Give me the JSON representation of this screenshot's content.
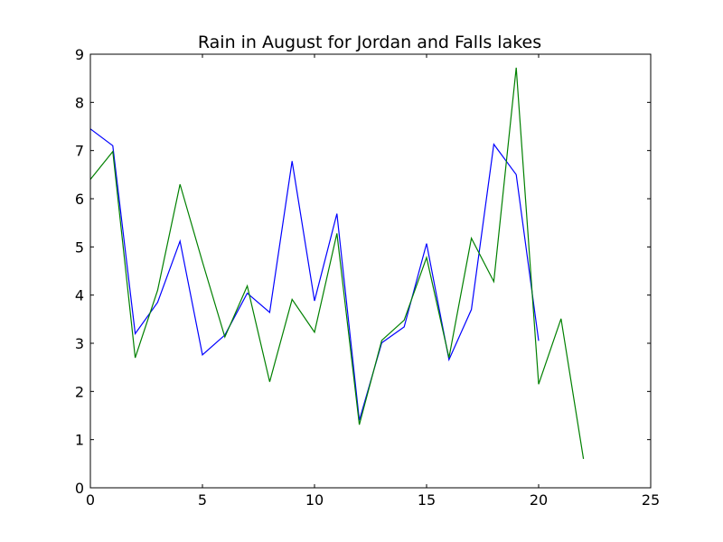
{
  "chart_data": {
    "type": "line",
    "title": "Rain in August for Jordan and Falls lakes",
    "xlabel": "",
    "ylabel": "",
    "xlim": [
      0,
      25
    ],
    "ylim": [
      0,
      9
    ],
    "x_ticks": [
      0,
      5,
      10,
      15,
      20,
      25
    ],
    "y_ticks": [
      0,
      1,
      2,
      3,
      4,
      5,
      6,
      7,
      8,
      9
    ],
    "grid": false,
    "series": [
      {
        "color": "#0000ff",
        "x": [
          0,
          1,
          2,
          3,
          4,
          5,
          6,
          7,
          8,
          9,
          10,
          11,
          12,
          13,
          14,
          15,
          16,
          17,
          18,
          19,
          20
        ],
        "values": [
          7.45,
          7.1,
          3.2,
          3.85,
          5.12,
          2.76,
          3.17,
          4.04,
          3.64,
          6.78,
          3.88,
          5.69,
          1.4,
          3.01,
          3.34,
          5.07,
          2.66,
          3.7,
          7.13,
          6.5,
          3.05
        ]
      },
      {
        "color": "#008000",
        "x": [
          0,
          1,
          2,
          3,
          4,
          5,
          6,
          7,
          8,
          9,
          10,
          11,
          12,
          13,
          14,
          15,
          16,
          17,
          18,
          19,
          20,
          21,
          22
        ],
        "values": [
          6.4,
          6.98,
          2.7,
          4.1,
          6.3,
          4.69,
          3.13,
          4.19,
          2.2,
          3.91,
          3.23,
          5.28,
          1.31,
          3.06,
          3.48,
          4.78,
          2.7,
          5.18,
          4.28,
          8.72,
          2.15,
          3.51,
          0.6
        ]
      }
    ]
  }
}
